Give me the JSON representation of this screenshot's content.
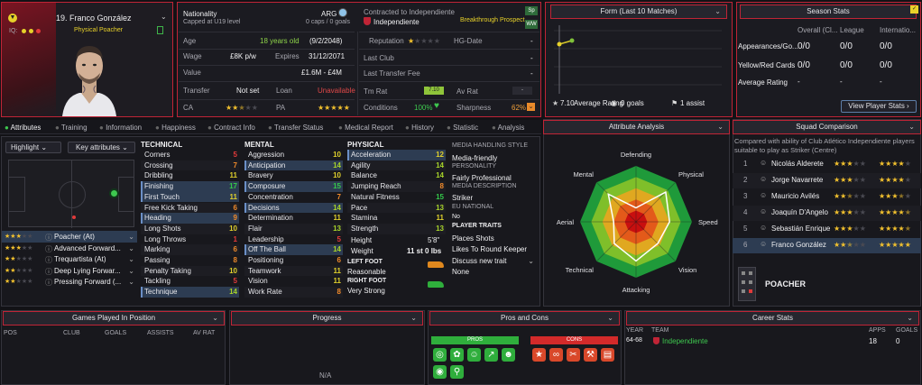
{
  "player": {
    "number_name": "19. Franco González",
    "role": "Physical Poacher",
    "iq_label": "IQ:"
  },
  "info": {
    "nationality_label": "Nationality",
    "nationality_sub": "Capped at U19 level",
    "nation_code": "ARG",
    "caps": "0 caps / 0 goals",
    "contract_title": "Contracted to Independiente",
    "club": "Independiente",
    "breakthrough": "Breakthrough Prospect",
    "age_label": "Age",
    "age_value": "18 years old",
    "dob": "(9/2/2048)",
    "wage_label": "Wage",
    "wage_value": "£8K p/w",
    "expires_label": "Expires",
    "expires_value": "31/12/2071",
    "value_label": "Value",
    "value_value": "£1.6M - £4M",
    "transfer_label": "Transfer",
    "transfer_value": "Not set",
    "loan_label": "Loan",
    "loan_value": "Unavailable",
    "ca_label": "CA",
    "pa_label": "PA",
    "reputation_label": "Reputation",
    "hg_label": "HG-Date",
    "hg_value": "-",
    "lastclub_label": "Last Club",
    "lastclub_value": "-",
    "ltf_label": "Last Transfer Fee",
    "ltf_value": "-",
    "tmrat_label": "Tm Rat",
    "tmrat_value": "7.10",
    "avrat_label": "Av Rat",
    "avrat_value": "-",
    "conditions_label": "Conditions",
    "conditions_value": "100%",
    "sharpness_label": "Sharpness",
    "sharpness_value": "62%",
    "tag_sp": "Sp",
    "tag_ww": "WW"
  },
  "form": {
    "title": "Form (Last 10 Matches)",
    "avg_value": "7.10",
    "avg_label": "Average Rating",
    "goals": "0 goals",
    "assists": "1 assist"
  },
  "season": {
    "title": "Season Stats",
    "cols": [
      "Overall (Cl...",
      "League",
      "Internatio..."
    ],
    "rows": [
      {
        "label": "Appearances/Go...",
        "vals": [
          "0/0",
          "0/0",
          "0/0"
        ]
      },
      {
        "label": "Yellow/Red Cards",
        "vals": [
          "0/0",
          "0/0",
          "0/0"
        ]
      },
      {
        "label": "Average Rating",
        "vals": [
          "-",
          "-",
          "-"
        ]
      }
    ],
    "button": "View Player Stats"
  },
  "tabs": [
    "Attributes",
    "Training",
    "Information",
    "Happiness",
    "Contract Info",
    "Transfer Status",
    "Medical Report",
    "History",
    "Statistic",
    "Analysis"
  ],
  "left_controls": {
    "highlight": "Highlight",
    "key": "Key attributes"
  },
  "roles": [
    {
      "name": "Poacher (At)",
      "stars": 3
    },
    {
      "name": "Advanced Forward...",
      "stars": 3
    },
    {
      "name": "Trequartista (At)",
      "stars": 2
    },
    {
      "name": "Deep Lying Forwar...",
      "stars": 2
    },
    {
      "name": "Pressing Forward (...",
      "stars": 2
    }
  ],
  "technical": {
    "title": "TECHNICAL",
    "items": [
      {
        "n": "Corners",
        "v": "5",
        "hl": false
      },
      {
        "n": "Crossing",
        "v": "7",
        "hl": false
      },
      {
        "n": "Dribbling",
        "v": "11",
        "hl": false
      },
      {
        "n": "Finishing",
        "v": "17",
        "hl": true
      },
      {
        "n": "First Touch",
        "v": "11",
        "hl": true
      },
      {
        "n": "Free Kick Taking",
        "v": "6",
        "hl": false
      },
      {
        "n": "Heading",
        "v": "9",
        "hl": true
      },
      {
        "n": "Long Shots",
        "v": "10",
        "hl": false
      },
      {
        "n": "Long Throws",
        "v": "1",
        "hl": false
      },
      {
        "n": "Marking",
        "v": "6",
        "hl": false
      },
      {
        "n": "Passing",
        "v": "8",
        "hl": false
      },
      {
        "n": "Penalty Taking",
        "v": "10",
        "hl": false
      },
      {
        "n": "Tackling",
        "v": "5",
        "hl": false
      },
      {
        "n": "Technique",
        "v": "14",
        "hl": true
      }
    ]
  },
  "mental": {
    "title": "MENTAL",
    "items": [
      {
        "n": "Aggression",
        "v": "10",
        "hl": false
      },
      {
        "n": "Anticipation",
        "v": "14",
        "hl": true
      },
      {
        "n": "Bravery",
        "v": "10",
        "hl": false
      },
      {
        "n": "Composure",
        "v": "15",
        "hl": true
      },
      {
        "n": "Concentration",
        "v": "7",
        "hl": false
      },
      {
        "n": "Decisions",
        "v": "14",
        "hl": true
      },
      {
        "n": "Determination",
        "v": "11",
        "hl": false
      },
      {
        "n": "Flair",
        "v": "13",
        "hl": false
      },
      {
        "n": "Leadership",
        "v": "5",
        "hl": false
      },
      {
        "n": "Off The Ball",
        "v": "14",
        "hl": true
      },
      {
        "n": "Positioning",
        "v": "6",
        "hl": false
      },
      {
        "n": "Teamwork",
        "v": "11",
        "hl": false
      },
      {
        "n": "Vision",
        "v": "11",
        "hl": false
      },
      {
        "n": "Work Rate",
        "v": "8",
        "hl": false
      }
    ]
  },
  "physical": {
    "title": "PHYSICAL",
    "items": [
      {
        "n": "Acceleration",
        "v": "12",
        "hl": true
      },
      {
        "n": "Agility",
        "v": "14",
        "hl": false
      },
      {
        "n": "Balance",
        "v": "14",
        "hl": false
      },
      {
        "n": "Jumping Reach",
        "v": "8",
        "hl": false
      },
      {
        "n": "Natural Fitness",
        "v": "15",
        "hl": false
      },
      {
        "n": "Pace",
        "v": "13",
        "hl": false
      },
      {
        "n": "Stamina",
        "v": "11",
        "hl": false
      },
      {
        "n": "Strength",
        "v": "13",
        "hl": false
      }
    ]
  },
  "body": {
    "height_label": "Height",
    "height_value": "5'8\"",
    "weight_label": "Weight",
    "weight_value": "11 st 0 lbs",
    "left_foot_label": "LEFT FOOT",
    "left_foot_value": "Reasonable",
    "right_foot_label": "RIGHT FOOT",
    "right_foot_value": "Very Strong"
  },
  "media": {
    "style_title": "MEDIA HANDLING STYLE",
    "style_value": "Media-friendly",
    "personality_title": "PERSONALITY",
    "personality_value": "Fairly Professional",
    "desc_title": "MEDIA DESCRIPTION",
    "desc_value": "Striker",
    "eu_title": "EU NATIONAL",
    "eu_value": "No",
    "traits_title": "PLAYER TRAITS",
    "traits": [
      "Places Shots",
      "Likes To Round Keeper"
    ],
    "discuss": "Discuss new trait",
    "none": "None"
  },
  "analysis": {
    "title": "Attribute Analysis",
    "axes": [
      "Defending",
      "Physical",
      "Speed",
      "Vision",
      "Attacking",
      "Technical",
      "Aerial",
      "Mental"
    ],
    "values": [
      0.25,
      0.75,
      0.6,
      0.55,
      0.7,
      0.55,
      0.4,
      0.7
    ]
  },
  "squad": {
    "title": "Squad Comparison",
    "desc": "Compared with ability of Club Atlético Independiente players suitable to play as Striker (Centre)",
    "rows": [
      {
        "rank": "1",
        "name": "Nicolás Alderete",
        "ca": 3,
        "pa": 4
      },
      {
        "rank": "2",
        "name": "Jorge Navarrete",
        "ca": 3,
        "pa": 4
      },
      {
        "rank": "3",
        "name": "Mauricio Avilés",
        "ca": 2.5,
        "pa": 3.5
      },
      {
        "rank": "4",
        "name": "Joaquín D'Angelo",
        "ca": 3,
        "pa": 4.5
      },
      {
        "rank": "5",
        "name": "Sebastián Enrique",
        "ca": 3,
        "pa": 4.5
      },
      {
        "rank": "6",
        "name": "Franco González",
        "ca": 2.5,
        "pa": 5
      }
    ],
    "role": "POACHER"
  },
  "bottom": {
    "games_title": "Games Played In Position",
    "games_cols": [
      "POS",
      "CLUB",
      "GOALS",
      "ASSISTS",
      "AV RAT"
    ],
    "progress_title": "Progress",
    "progress_na": "N/A",
    "pros_title": "Pros and Cons",
    "pros_label": "PROS",
    "cons_label": "CONS",
    "career_title": "Career Stats",
    "career_cols": [
      "YEAR",
      "TEAM",
      "APPS",
      "GOALS"
    ],
    "career_row": {
      "year": "64-68",
      "team": "Independiente",
      "apps": "18",
      "goals": "0"
    }
  },
  "colors": {
    "red": "#c02436",
    "accent_yellow": "#e8d22a",
    "green": "#2fae3c"
  }
}
